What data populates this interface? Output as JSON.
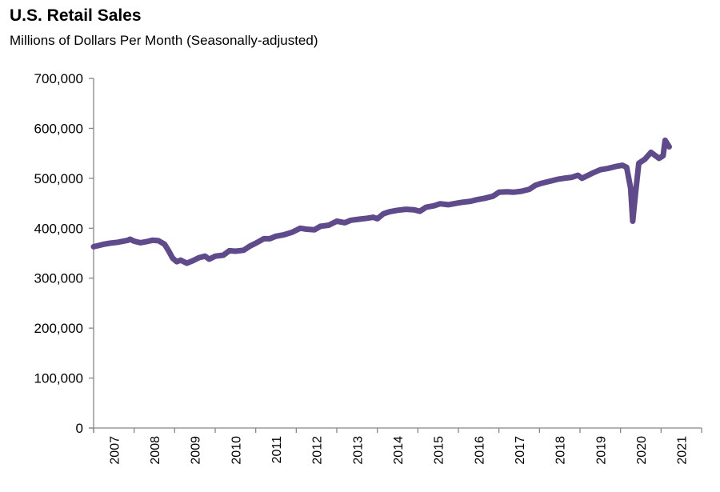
{
  "chart_data": {
    "type": "line",
    "title": "U.S. Retail Sales",
    "subtitle": "Millions of Dollars Per Month (Seasonally-adjusted)",
    "xlabel": "",
    "ylabel": "",
    "ylim": [
      0,
      700000
    ],
    "xlim": [
      2007,
      2022
    ],
    "grid": false,
    "line_color": "#5f4b8b",
    "y_ticks": [
      {
        "value": 0,
        "label": "0"
      },
      {
        "value": 100000,
        "label": "100,000"
      },
      {
        "value": 200000,
        "label": "200,000"
      },
      {
        "value": 300000,
        "label": "300,000"
      },
      {
        "value": 400000,
        "label": "400,000"
      },
      {
        "value": 500000,
        "label": "500,000"
      },
      {
        "value": 600000,
        "label": "600,000"
      },
      {
        "value": 700000,
        "label": "700,000"
      }
    ],
    "x_ticks": [
      "2007",
      "2008",
      "2009",
      "2010",
      "2011",
      "2012",
      "2013",
      "2014",
      "2015",
      "2016",
      "2017",
      "2018",
      "2019",
      "2020",
      "2021"
    ],
    "series": [
      {
        "name": "U.S. Retail Sales",
        "points": [
          [
            2007.0,
            363000
          ],
          [
            2007.25,
            368000
          ],
          [
            2007.4,
            370000
          ],
          [
            2007.6,
            372000
          ],
          [
            2007.85,
            376000
          ],
          [
            2007.9,
            378000
          ],
          [
            2008.0,
            374000
          ],
          [
            2008.15,
            371000
          ],
          [
            2008.3,
            373000
          ],
          [
            2008.45,
            376000
          ],
          [
            2008.6,
            375000
          ],
          [
            2008.75,
            368000
          ],
          [
            2008.85,
            355000
          ],
          [
            2008.95,
            340000
          ],
          [
            2009.05,
            333000
          ],
          [
            2009.15,
            336000
          ],
          [
            2009.3,
            330000
          ],
          [
            2009.45,
            335000
          ],
          [
            2009.6,
            341000
          ],
          [
            2009.75,
            344000
          ],
          [
            2009.85,
            338000
          ],
          [
            2010.0,
            344000
          ],
          [
            2010.2,
            346000
          ],
          [
            2010.35,
            355000
          ],
          [
            2010.5,
            354000
          ],
          [
            2010.7,
            356000
          ],
          [
            2010.85,
            364000
          ],
          [
            2011.0,
            370000
          ],
          [
            2011.2,
            379000
          ],
          [
            2011.35,
            379000
          ],
          [
            2011.5,
            384000
          ],
          [
            2011.7,
            387000
          ],
          [
            2011.9,
            392000
          ],
          [
            2012.1,
            400000
          ],
          [
            2012.25,
            398000
          ],
          [
            2012.45,
            397000
          ],
          [
            2012.6,
            404000
          ],
          [
            2012.8,
            406000
          ],
          [
            2013.0,
            414000
          ],
          [
            2013.2,
            411000
          ],
          [
            2013.35,
            416000
          ],
          [
            2013.55,
            418000
          ],
          [
            2013.75,
            420000
          ],
          [
            2013.9,
            422000
          ],
          [
            2014.0,
            419000
          ],
          [
            2014.15,
            429000
          ],
          [
            2014.3,
            433000
          ],
          [
            2014.5,
            436000
          ],
          [
            2014.7,
            438000
          ],
          [
            2014.9,
            437000
          ],
          [
            2015.05,
            434000
          ],
          [
            2015.2,
            442000
          ],
          [
            2015.4,
            445000
          ],
          [
            2015.55,
            449000
          ],
          [
            2015.75,
            447000
          ],
          [
            2015.95,
            450000
          ],
          [
            2016.1,
            452000
          ],
          [
            2016.3,
            454000
          ],
          [
            2016.45,
            457000
          ],
          [
            2016.65,
            460000
          ],
          [
            2016.85,
            464000
          ],
          [
            2017.0,
            472000
          ],
          [
            2017.2,
            473000
          ],
          [
            2017.35,
            472000
          ],
          [
            2017.55,
            474000
          ],
          [
            2017.75,
            478000
          ],
          [
            2017.9,
            486000
          ],
          [
            2018.05,
            490000
          ],
          [
            2018.25,
            494000
          ],
          [
            2018.45,
            498000
          ],
          [
            2018.6,
            500000
          ],
          [
            2018.8,
            502000
          ],
          [
            2018.95,
            506000
          ],
          [
            2019.05,
            500000
          ],
          [
            2019.15,
            504000
          ],
          [
            2019.3,
            510000
          ],
          [
            2019.5,
            517000
          ],
          [
            2019.7,
            520000
          ],
          [
            2019.9,
            524000
          ],
          [
            2020.05,
            526000
          ],
          [
            2020.15,
            522000
          ],
          [
            2020.25,
            480000
          ],
          [
            2020.3,
            414000
          ],
          [
            2020.37,
            470000
          ],
          [
            2020.45,
            530000
          ],
          [
            2020.6,
            538000
          ],
          [
            2020.75,
            552000
          ],
          [
            2020.95,
            540000
          ],
          [
            2021.05,
            545000
          ],
          [
            2021.1,
            576000
          ],
          [
            2021.2,
            563000
          ]
        ]
      }
    ]
  }
}
